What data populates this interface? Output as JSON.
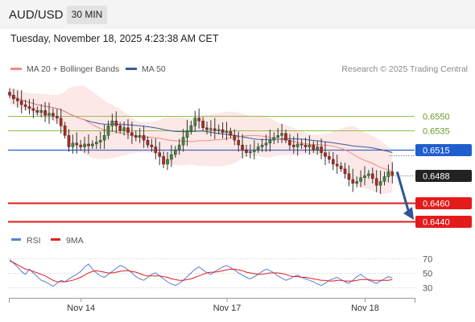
{
  "header": {
    "symbol": "AUD/USD",
    "timeframe": "30 MIN"
  },
  "datetime": "Tuesday, November 18, 2025 4:23:38 AM CET",
  "legend": {
    "ma20": {
      "label": "MA 20 + Bollinger Bands",
      "color": "#f28b82"
    },
    "ma50": {
      "label": "MA 50",
      "color": "#3a5a9a"
    }
  },
  "credit": "Research © 2025 Trading Central",
  "rsi_legend": {
    "rsi": {
      "label": "RSI",
      "color": "#5b7fd6"
    },
    "ma": {
      "label": "9MA",
      "color": "#e02020"
    }
  },
  "chart_data": {
    "type": "candlestick",
    "price_axis": {
      "min": 0.6432,
      "max": 0.6583
    },
    "current_price": {
      "value": 0.6488,
      "label": "0.6488",
      "color": "#222222"
    },
    "levels": [
      {
        "value": 0.655,
        "label": "0.6550",
        "kind": "resistance",
        "color": "#8bc34a"
      },
      {
        "value": 0.6535,
        "label": "0.6535",
        "kind": "resistance",
        "color": "#8bc34a"
      },
      {
        "value": 0.6515,
        "label": "0.6515",
        "kind": "pivot",
        "color": "#1e5ecf"
      },
      {
        "value": 0.646,
        "label": "0.6460",
        "kind": "support",
        "color": "#e31b1b"
      },
      {
        "value": 0.644,
        "label": "0.6440",
        "kind": "support",
        "color": "#e31b1b"
      }
    ],
    "forecast_arrow": {
      "from": 0.6492,
      "to": 0.6442,
      "direction": "down"
    },
    "x_ticks": [
      {
        "label": "Nov 14",
        "index": 18
      },
      {
        "label": "Nov 17",
        "index": 55
      },
      {
        "label": "Nov 18",
        "index": 90
      }
    ],
    "closes": [
      0.6572,
      0.6568,
      0.6566,
      0.6562,
      0.656,
      0.6558,
      0.6556,
      0.6554,
      0.6556,
      0.6551,
      0.6553,
      0.655,
      0.6548,
      0.654,
      0.653,
      0.6518,
      0.6522,
      0.652,
      0.6518,
      0.6521,
      0.6519,
      0.6521,
      0.6523,
      0.6525,
      0.653,
      0.654,
      0.6545,
      0.654,
      0.6535,
      0.6538,
      0.6533,
      0.653,
      0.6528,
      0.653,
      0.6525,
      0.652,
      0.6518,
      0.6512,
      0.6508,
      0.65,
      0.6505,
      0.651,
      0.6515,
      0.652,
      0.6528,
      0.6535,
      0.654,
      0.6548,
      0.6545,
      0.6538,
      0.6536,
      0.6537,
      0.6535,
      0.6536,
      0.6533,
      0.6534,
      0.653,
      0.6525,
      0.652,
      0.6515,
      0.6512,
      0.6513,
      0.6515,
      0.6518,
      0.652,
      0.6522,
      0.6525,
      0.6528,
      0.653,
      0.6532,
      0.6525,
      0.652,
      0.6518,
      0.6521,
      0.652,
      0.6518,
      0.652,
      0.6515,
      0.6518,
      0.6512,
      0.6508,
      0.6505,
      0.65,
      0.6498,
      0.6495,
      0.649,
      0.6484,
      0.648,
      0.6482,
      0.6486,
      0.6488,
      0.649,
      0.6485,
      0.6478,
      0.6482,
      0.6487,
      0.6492,
      0.6488
    ],
    "rsi_panel": {
      "levels": [
        70,
        50,
        30
      ],
      "tick_labels": [
        "70",
        "50",
        "30"
      ],
      "rsi": [
        68,
        63,
        58,
        52,
        48,
        55,
        50,
        45,
        40,
        38,
        35,
        32,
        36,
        40,
        38,
        42,
        45,
        48,
        52,
        58,
        62,
        55,
        50,
        46,
        44,
        48,
        52,
        56,
        60,
        58,
        54,
        50,
        45,
        42,
        40,
        44,
        48,
        50,
        46,
        42,
        38,
        35,
        33,
        36,
        40,
        45,
        50,
        55,
        58,
        54,
        50,
        48,
        52,
        55,
        58,
        60,
        57,
        54,
        50,
        47,
        44,
        42,
        45,
        48,
        52,
        55,
        53,
        50,
        46,
        43,
        40,
        42,
        45,
        47,
        44,
        42,
        40,
        38,
        35,
        33,
        36,
        40,
        42,
        44,
        41,
        38,
        36,
        40,
        45,
        48,
        44,
        40,
        38,
        36,
        39,
        42,
        45,
        43
      ],
      "ma": [
        66,
        64,
        61,
        58,
        55,
        54,
        52,
        50,
        48,
        46,
        43,
        40,
        38,
        38,
        38,
        39,
        40,
        42,
        44,
        47,
        50,
        52,
        53,
        52,
        51,
        50,
        50,
        51,
        52,
        53,
        53,
        52,
        51,
        49,
        47,
        46,
        46,
        46,
        46,
        45,
        44,
        42,
        41,
        40,
        40,
        41,
        42,
        44,
        46,
        48,
        50,
        51,
        51,
        52,
        53,
        54,
        55,
        55,
        54,
        53,
        51,
        50,
        49,
        48,
        48,
        49,
        50,
        50,
        50,
        49,
        48,
        46,
        45,
        45,
        44,
        44,
        43,
        42,
        41,
        40,
        40,
        39,
        39,
        40,
        40,
        39,
        39,
        39,
        40,
        41,
        41,
        41,
        40,
        40,
        40,
        40,
        40,
        41
      ]
    }
  }
}
